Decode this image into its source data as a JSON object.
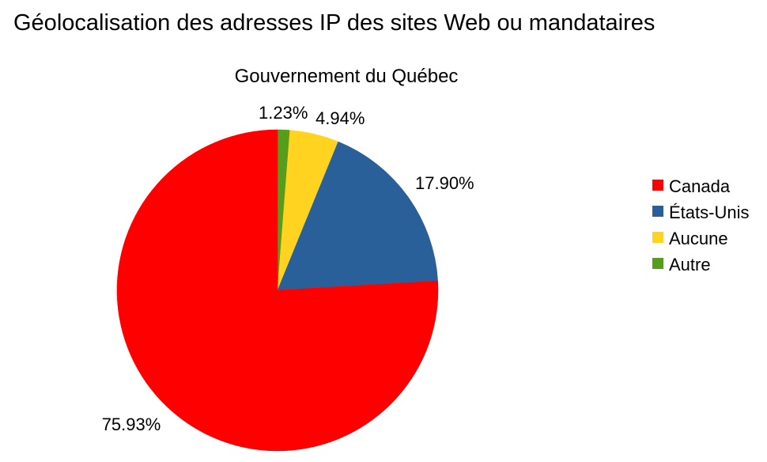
{
  "title": "Géolocalisation des adresses IP des sites Web ou mandataires",
  "chart_data": {
    "type": "pie",
    "title": "Gouvernement du Québec",
    "legend_position": "right",
    "slices": [
      {
        "name": "Canada",
        "value": 75.93,
        "label": "75.93%",
        "color": "#ff0000"
      },
      {
        "name": "États-Unis",
        "value": 17.9,
        "label": "17.90%",
        "color": "#2a6099"
      },
      {
        "name": "Aucune",
        "value": 4.94,
        "label": "4.94%",
        "color": "#ffd320"
      },
      {
        "name": "Autre",
        "value": 1.23,
        "label": "1.23%",
        "color": "#579d1c"
      }
    ]
  }
}
